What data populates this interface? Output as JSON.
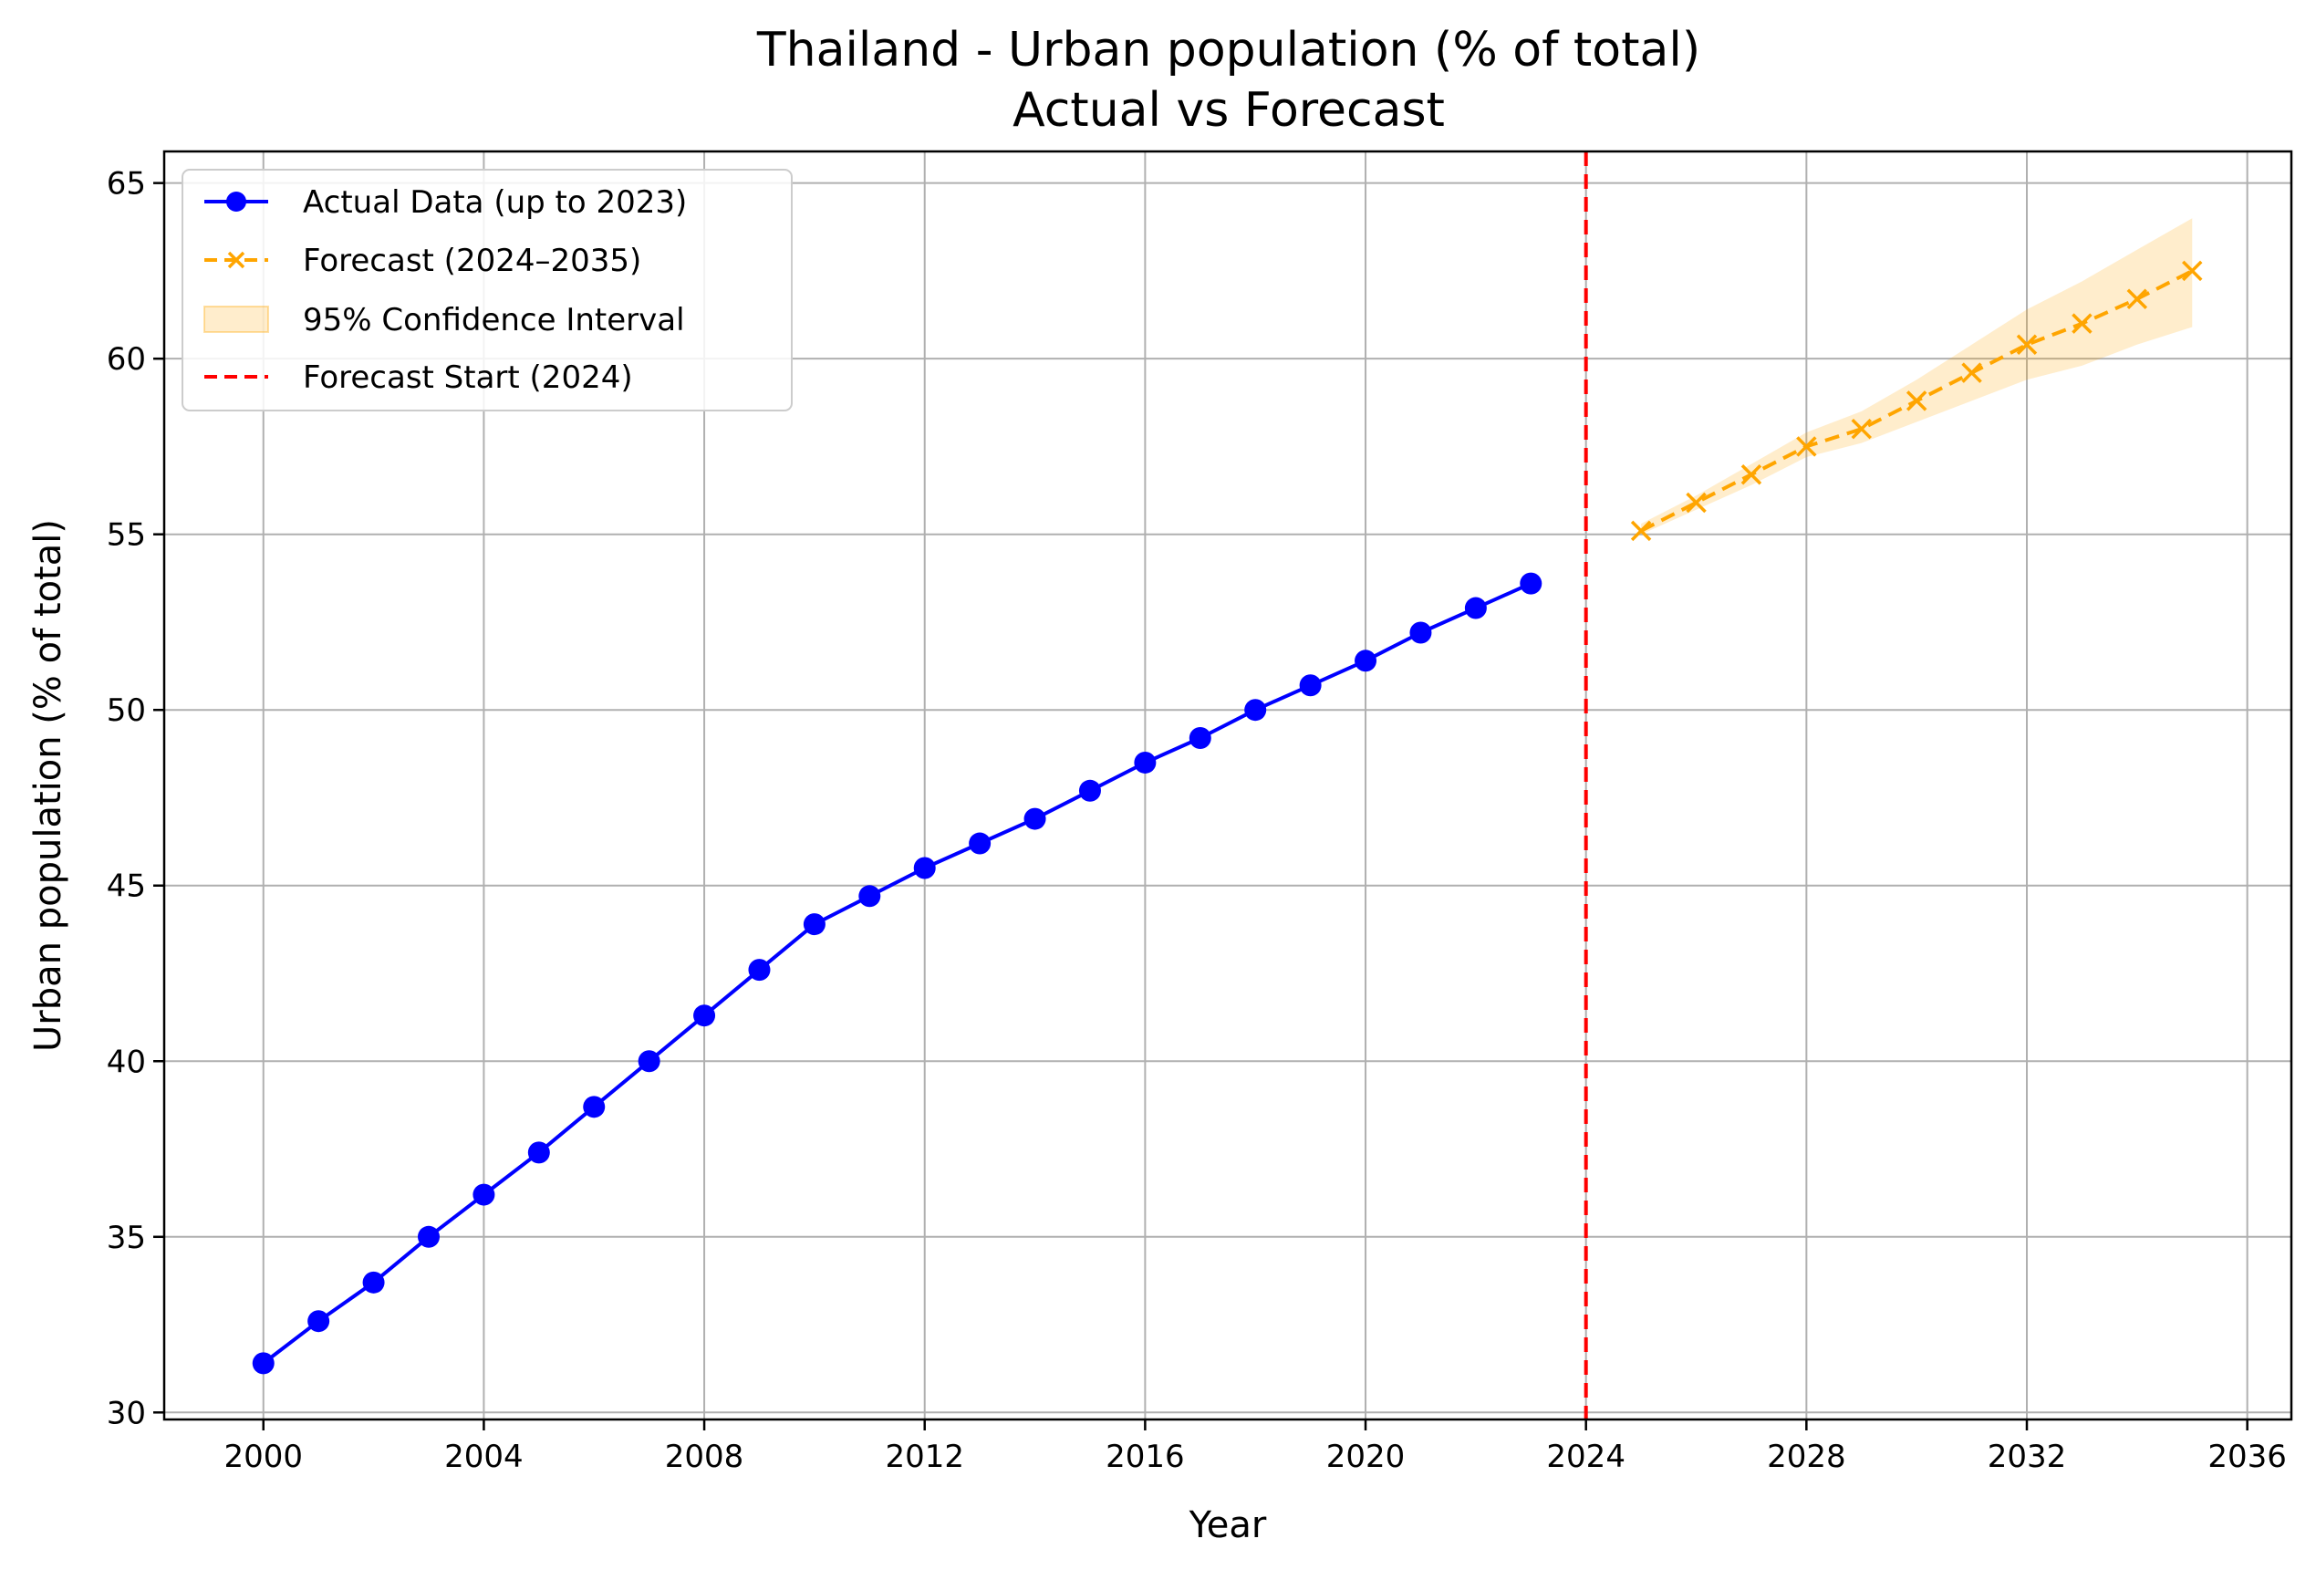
{
  "chart_data": {
    "type": "line",
    "title": "Thailand - Urban population (% of total)",
    "subtitle": "Actual vs Forecast",
    "xlabel": "Year",
    "ylabel": "Urban population (% of total)",
    "xlim": [
      1998.2,
      2036.8
    ],
    "ylim": [
      29.8,
      65.9
    ],
    "xticks": [
      2000,
      2004,
      2008,
      2012,
      2016,
      2020,
      2024,
      2028,
      2032,
      2036
    ],
    "yticks": [
      30,
      35,
      40,
      45,
      50,
      55,
      60,
      65
    ],
    "grid": true,
    "legend_position": "upper-left",
    "series": [
      {
        "name": "Actual Data (up to 2023)",
        "style": "solid-line-circle-markers",
        "color": "#0000ff",
        "x": [
          2000,
          2001,
          2002,
          2003,
          2004,
          2005,
          2006,
          2007,
          2008,
          2009,
          2010,
          2011,
          2012,
          2013,
          2014,
          2015,
          2016,
          2017,
          2018,
          2019,
          2020,
          2021,
          2022,
          2023
        ],
        "values": [
          31.4,
          32.6,
          33.7,
          35.0,
          36.2,
          37.4,
          38.7,
          40.0,
          41.3,
          42.6,
          43.9,
          44.7,
          45.5,
          46.2,
          46.9,
          47.7,
          48.5,
          49.2,
          50.0,
          50.7,
          51.4,
          52.2,
          52.9,
          53.6
        ]
      },
      {
        "name": "Forecast (2024–2035)",
        "style": "dashed-line-x-markers",
        "color": "#ffa500",
        "x": [
          2025,
          2026,
          2027,
          2028,
          2029,
          2030,
          2031,
          2032,
          2033,
          2034,
          2035
        ],
        "values": [
          55.1,
          55.9,
          56.7,
          57.5,
          58.0,
          58.8,
          59.6,
          60.4,
          61.0,
          61.7,
          62.5
        ]
      },
      {
        "name": "95% Confidence Interval",
        "style": "shaded-band",
        "color": "#ffa500",
        "x": [
          2025,
          2026,
          2027,
          2028,
          2029,
          2030,
          2031,
          2032,
          2033,
          2034,
          2035
        ],
        "lower": [
          55.0,
          55.7,
          56.4,
          57.2,
          57.6,
          58.2,
          58.8,
          59.4,
          59.8,
          60.4,
          60.9
        ],
        "upper": [
          55.3,
          56.1,
          57.0,
          57.9,
          58.5,
          59.4,
          60.4,
          61.4,
          62.2,
          63.1,
          64.0
        ]
      },
      {
        "name": "Forecast Start (2024)",
        "style": "dashed-vertical-line",
        "color": "#ff0000",
        "x_value": 2024
      }
    ]
  }
}
